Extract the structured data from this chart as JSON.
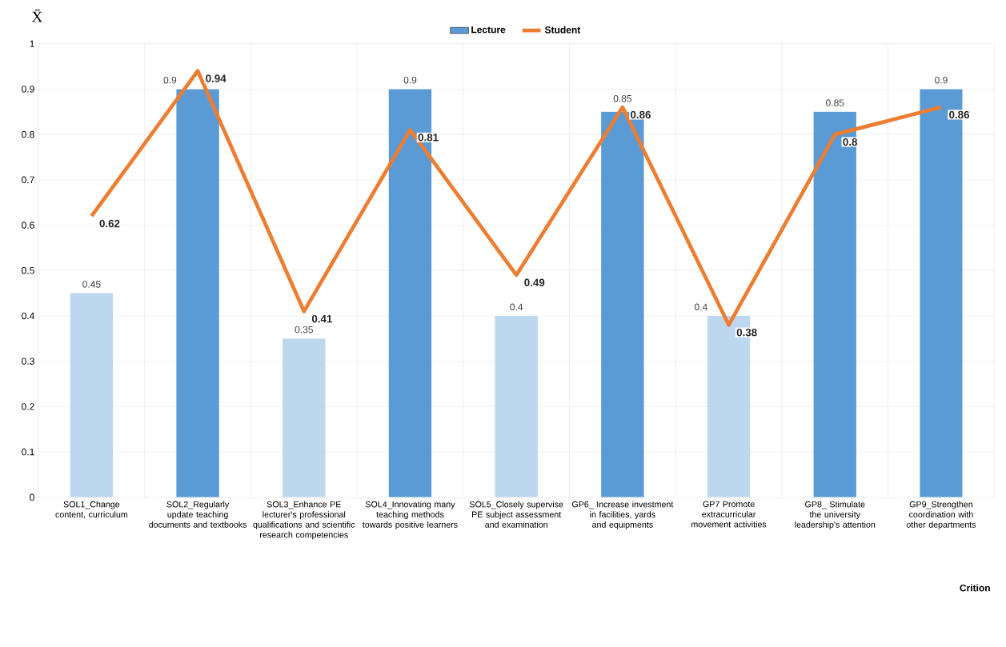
{
  "chart_data": {
    "type": "bar",
    "xlabel": "Crition",
    "ylabel": "X̄",
    "categories": [
      "SOL1_Change content, curriculum",
      "SOL2_Regularly update teaching documents and textbooks",
      "SOL3_Enhance PE lecturer's professional qualifications and scientific research competencies",
      "SOL4_Innovating many teaching methods towards positive learners",
      "SOL5_Closely supervise PE subject assessment and examination",
      "GP6_ Increase investment in facilities, yards and equipments",
      "GP7 Promote extracurricular movement activities",
      "GP8_ Stimulate the university leadership's attention",
      "GP9_Strengthen coordination with other departments"
    ],
    "series": [
      {
        "name": "Lecture",
        "color": "#5b9bd5",
        "colors": [
          "#bdd7ee",
          "#5b9bd5",
          "#bdd7ee",
          "#5b9bd5",
          "#bdd7ee",
          "#5b9bd5",
          "#bdd7ee",
          "#5b9bd5",
          "#5b9bd5"
        ],
        "values": [
          0.45,
          0.9,
          0.35,
          0.9,
          0.4,
          0.85,
          0.4,
          0.85,
          0.9
        ],
        "value_labels": [
          "0.45",
          "0.9",
          "0.35",
          "0.9",
          "0.4",
          "0.85",
          "0.4",
          "0.85",
          "0.9"
        ]
      },
      {
        "name": "Student",
        "type": "line",
        "color": "#ed7d31",
        "values": [
          0.62,
          0.94,
          0.41,
          0.81,
          0.49,
          0.86,
          0.38,
          0.8,
          0.86
        ],
        "value_labels": [
          "0.62",
          "0.94",
          "0.41",
          "0.81",
          "0.49",
          "0.86",
          "0.38",
          "0.8",
          "0.86"
        ]
      }
    ],
    "ylim": [
      0,
      1
    ],
    "yticks": [
      0,
      0.1,
      0.2,
      0.3,
      0.4,
      0.5,
      0.6,
      0.7,
      0.8,
      0.9,
      1
    ],
    "grid": true,
    "legend": "top",
    "marker": "none",
    "line_style": "solid"
  }
}
